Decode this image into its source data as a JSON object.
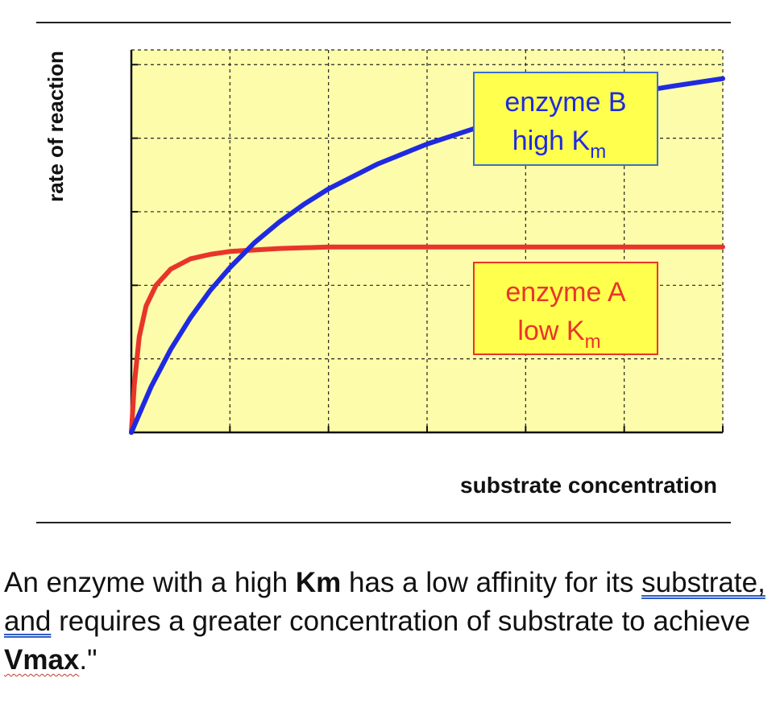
{
  "chart_data": {
    "type": "line",
    "title": "",
    "xlabel": "substrate concentration",
    "ylabel": "rate of reaction",
    "xlim": [
      0,
      6
    ],
    "ylim": [
      0,
      5.2
    ],
    "grid": true,
    "series": [
      {
        "name": "enzyme A low Km",
        "color": "#e8352a",
        "x": [
          0,
          0.03,
          0.08,
          0.15,
          0.25,
          0.4,
          0.6,
          0.8,
          1.0,
          1.5,
          2.0,
          3.0,
          4.0,
          5.0,
          6.0
        ],
        "y": [
          0,
          0.65,
          1.3,
          1.72,
          2.0,
          2.22,
          2.36,
          2.42,
          2.46,
          2.5,
          2.52,
          2.52,
          2.52,
          2.52,
          2.52
        ]
      },
      {
        "name": "enzyme B high Km",
        "color": "#1f2ae0",
        "x": [
          0,
          0.2,
          0.4,
          0.6,
          0.8,
          1.0,
          1.25,
          1.5,
          1.75,
          2.0,
          2.5,
          3.0,
          3.5,
          4.0,
          4.5,
          5.0,
          5.5,
          6.0
        ],
        "y": [
          0,
          0.62,
          1.13,
          1.56,
          1.93,
          2.24,
          2.58,
          2.86,
          3.1,
          3.31,
          3.65,
          3.92,
          4.14,
          4.32,
          4.47,
          4.6,
          4.71,
          4.81
        ]
      }
    ],
    "annotations": [
      {
        "line1": "enzyme B",
        "line2": "high K",
        "sub": "m",
        "color": "#1f2ae0",
        "border": "#3a6fd0"
      },
      {
        "line1": "enzyme A",
        "line2": "low K",
        "sub": "m",
        "color": "#e8352a",
        "border": "#e8352a"
      }
    ],
    "colors": {
      "plot_bg": "#fcfcaa",
      "label_bg": "#ffff4d"
    }
  },
  "caption": {
    "part1": "An enzyme with a high ",
    "bold1": "Km",
    "part2": " has a low affinity for its ",
    "linked": "substrate, and",
    "part3": " requires a greater concentration of substrate to achieve ",
    "bold2": "Vmax",
    "part4": ".\""
  }
}
